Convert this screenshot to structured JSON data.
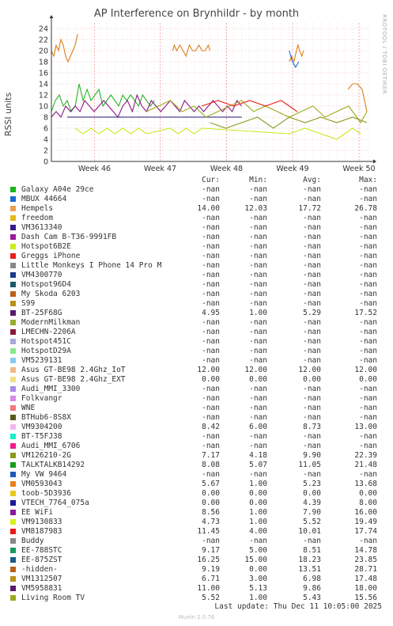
{
  "chart_data": {
    "type": "line",
    "title": "AP Interference on Brynhildr - by month",
    "ylabel": "RSSI units",
    "ylim": [
      0,
      25
    ],
    "yticks": [
      0,
      2,
      4,
      6,
      8,
      10,
      12,
      14,
      16,
      18,
      20,
      22,
      24
    ],
    "x_ticks": [
      "Week 46",
      "Week 47",
      "Week 48",
      "Week 49",
      "Week 50"
    ],
    "grid": true,
    "series": [
      {
        "name": "Hempels",
        "color": "#d97f1a",
        "values": [
          [
            0,
            20
          ],
          [
            3,
            19
          ],
          [
            6,
            21
          ],
          [
            9,
            20
          ],
          [
            12,
            22
          ],
          [
            15,
            21
          ],
          [
            18,
            19
          ],
          [
            21,
            18
          ],
          [
            24,
            19
          ],
          [
            27,
            20
          ],
          [
            30,
            21
          ],
          [
            33,
            23
          ]
        ]
      },
      {
        "name": "Hempels",
        "color": "#d97f1a",
        "values": [
          [
            153,
            20
          ],
          [
            155,
            21
          ],
          [
            158,
            20
          ],
          [
            162,
            21
          ],
          [
            166,
            20
          ],
          [
            170,
            19
          ],
          [
            174,
            21
          ],
          [
            178,
            20
          ],
          [
            182,
            20
          ],
          [
            186,
            21
          ],
          [
            190,
            20
          ],
          [
            194,
            20
          ],
          [
            198,
            21
          ],
          [
            200,
            20
          ]
        ]
      },
      {
        "name": "Hempels",
        "color": "#d97f1a",
        "values": [
          [
            300,
            18
          ],
          [
            303,
            19
          ],
          [
            306,
            18
          ],
          [
            309,
            20
          ],
          [
            311,
            21
          ],
          [
            313,
            20
          ],
          [
            316,
            19
          ],
          [
            318,
            20
          ]
        ]
      },
      {
        "name": "Galaxy A04e 29ce",
        "color": "#2bb52b",
        "values": [
          [
            0,
            9
          ],
          [
            5,
            11
          ],
          [
            10,
            12
          ],
          [
            15,
            10
          ],
          [
            20,
            11
          ],
          [
            25,
            9
          ],
          [
            30,
            10
          ],
          [
            35,
            14
          ],
          [
            40,
            11
          ],
          [
            45,
            13
          ],
          [
            50,
            11
          ],
          [
            55,
            12
          ],
          [
            60,
            13
          ],
          [
            65,
            10
          ],
          [
            70,
            11
          ],
          [
            75,
            12
          ],
          [
            80,
            11
          ],
          [
            85,
            10
          ],
          [
            90,
            12
          ],
          [
            95,
            11
          ],
          [
            100,
            12
          ],
          [
            105,
            11
          ],
          [
            110,
            10
          ],
          [
            115,
            12
          ],
          [
            120,
            11
          ],
          [
            125,
            10
          ],
          [
            130,
            11
          ]
        ]
      },
      {
        "name": "Dash Cam B-T36-9991FB",
        "color": "#8a1a8a",
        "values": [
          [
            0,
            8
          ],
          [
            6,
            9
          ],
          [
            12,
            8
          ],
          [
            18,
            10
          ],
          [
            24,
            9
          ],
          [
            30,
            10
          ],
          [
            36,
            9
          ],
          [
            42,
            11
          ],
          [
            48,
            10
          ],
          [
            54,
            9
          ],
          [
            60,
            10
          ],
          [
            66,
            11
          ],
          [
            72,
            10
          ],
          [
            78,
            9
          ],
          [
            84,
            8
          ],
          [
            90,
            10
          ],
          [
            96,
            11
          ],
          [
            102,
            9
          ],
          [
            108,
            12
          ],
          [
            114,
            10
          ],
          [
            120,
            9
          ],
          [
            126,
            11
          ],
          [
            132,
            10
          ],
          [
            138,
            9
          ],
          [
            144,
            10
          ],
          [
            150,
            11
          ],
          [
            156,
            10
          ],
          [
            162,
            9
          ],
          [
            168,
            11
          ],
          [
            174,
            10
          ],
          [
            180,
            9
          ],
          [
            186,
            10
          ],
          [
            192,
            9
          ],
          [
            198,
            10
          ],
          [
            204,
            11
          ],
          [
            210,
            10
          ],
          [
            216,
            9
          ],
          [
            222,
            10
          ],
          [
            228,
            9
          ],
          [
            234,
            11
          ],
          [
            240,
            10
          ]
        ]
      },
      {
        "name": "Hotspot6B2E",
        "color": "#c8e81a",
        "values": [
          [
            30,
            6
          ],
          [
            40,
            5
          ],
          [
            50,
            6
          ],
          [
            60,
            5
          ],
          [
            70,
            6
          ],
          [
            80,
            5
          ],
          [
            90,
            6
          ],
          [
            100,
            5
          ],
          [
            110,
            6
          ],
          [
            120,
            5
          ],
          [
            150,
            6
          ],
          [
            160,
            5
          ],
          [
            170,
            6
          ],
          [
            180,
            5
          ],
          [
            190,
            6
          ],
          [
            300,
            5
          ],
          [
            320,
            6
          ],
          [
            340,
            5
          ],
          [
            360,
            4
          ],
          [
            380,
            6
          ],
          [
            390,
            5
          ]
        ]
      },
      {
        "name": "VM4300770",
        "color": "#1a1a70",
        "values": [
          [
            20,
            8
          ],
          [
            40,
            8
          ],
          [
            60,
            8
          ],
          [
            80,
            8
          ],
          [
            100,
            8
          ],
          [
            120,
            8
          ],
          [
            140,
            8
          ],
          [
            160,
            8
          ],
          [
            180,
            8
          ],
          [
            200,
            8
          ],
          [
            220,
            8
          ],
          [
            240,
            8
          ]
        ]
      },
      {
        "name": "ModernMilkman",
        "color": "#9aaa1a",
        "values": [
          [
            120,
            9
          ],
          [
            135,
            10
          ],
          [
            150,
            11
          ],
          [
            165,
            9
          ],
          [
            180,
            10
          ],
          [
            195,
            8
          ],
          [
            210,
            9
          ],
          [
            225,
            10
          ],
          [
            240,
            11
          ],
          [
            255,
            9
          ],
          [
            270,
            10
          ],
          [
            285,
            9
          ],
          [
            300,
            8
          ],
          [
            315,
            9
          ],
          [
            330,
            10
          ],
          [
            345,
            8
          ],
          [
            360,
            9
          ],
          [
            375,
            10
          ],
          [
            390,
            7
          ],
          [
            398,
            9
          ]
        ]
      },
      {
        "name": "VM126210-2G",
        "color": "#8a9a20",
        "values": [
          [
            200,
            7
          ],
          [
            220,
            6
          ],
          [
            240,
            7
          ],
          [
            260,
            8
          ],
          [
            280,
            6
          ],
          [
            300,
            8
          ],
          [
            320,
            7
          ],
          [
            340,
            8
          ],
          [
            360,
            7
          ],
          [
            380,
            8
          ],
          [
            398,
            7
          ]
        ]
      },
      {
        "name": "Hempels",
        "color": "#d97f1a",
        "values": [
          [
            374,
            13
          ],
          [
            380,
            14
          ],
          [
            386,
            14
          ],
          [
            392,
            13
          ],
          [
            398,
            9
          ]
        ]
      },
      {
        "name": "VM8187983",
        "color": "#e8201a",
        "values": [
          [
            190,
            10
          ],
          [
            210,
            11
          ],
          [
            230,
            10
          ],
          [
            250,
            11
          ],
          [
            270,
            10
          ],
          [
            290,
            11
          ],
          [
            310,
            9
          ]
        ]
      },
      {
        "name": "MBUX 44664",
        "color": "#1a6ad0",
        "values": [
          [
            300,
            20
          ],
          [
            304,
            18
          ],
          [
            308,
            17
          ],
          [
            312,
            18
          ]
        ]
      }
    ]
  },
  "legend_header": {
    "cur": "Cur:",
    "min": "Min:",
    "avg": "Avg:",
    "max": "Max:"
  },
  "legend": [
    {
      "name": "Galaxy A04e 29ce",
      "color": "#1ab51a",
      "cur": "-nan",
      "min": "-nan",
      "avg": "-nan",
      "max": "-nan"
    },
    {
      "name": "MBUX 44664",
      "color": "#1a6ad0",
      "cur": "-nan",
      "min": "-nan",
      "avg": "-nan",
      "max": "-nan"
    },
    {
      "name": "Hempels",
      "color": "#e8a050",
      "cur": "14.00",
      "min": "12.03",
      "avg": "17.72",
      "max": "26.78"
    },
    {
      "name": "freedom",
      "color": "#e8b81a",
      "cur": "-nan",
      "min": "-nan",
      "avg": "-nan",
      "max": "-nan"
    },
    {
      "name": "VM3613340",
      "color": "#3a1a8a",
      "cur": "-nan",
      "min": "-nan",
      "avg": "-nan",
      "max": "-nan"
    },
    {
      "name": "Dash Cam B-T36-9991FB",
      "color": "#9a1a9a",
      "cur": "-nan",
      "min": "-nan",
      "avg": "-nan",
      "max": "-nan"
    },
    {
      "name": "Hotspot6B2E",
      "color": "#c8f01a",
      "cur": "-nan",
      "min": "-nan",
      "avg": "-nan",
      "max": "-nan"
    },
    {
      "name": "Greggs iPhone",
      "color": "#e8201a",
      "cur": "-nan",
      "min": "-nan",
      "avg": "-nan",
      "max": "-nan"
    },
    {
      "name": "Little Monkeys I Phone 14 Pro M",
      "color": "#888888",
      "cur": "-nan",
      "min": "-nan",
      "avg": "-nan",
      "max": "-nan"
    },
    {
      "name": "VM4300770",
      "color": "#1a3a8a",
      "cur": "-nan",
      "min": "-nan",
      "avg": "-nan",
      "max": "-nan"
    },
    {
      "name": "Hotspot96D4",
      "color": "#1a5a6a",
      "cur": "-nan",
      "min": "-nan",
      "avg": "-nan",
      "max": "-nan"
    },
    {
      "name": "My Skoda 6203",
      "color": "#b8601a",
      "cur": "-nan",
      "min": "-nan",
      "avg": "-nan",
      "max": "-nan"
    },
    {
      "name": "S99",
      "color": "#b8901a",
      "cur": "-nan",
      "min": "-nan",
      "avg": "-nan",
      "max": "-nan"
    },
    {
      "name": "BT-25F68G",
      "color": "#5a1a6a",
      "cur": "4.95",
      "min": "1.00",
      "avg": "5.29",
      "max": "17.52"
    },
    {
      "name": "ModernMilkman",
      "color": "#9aaa2a",
      "cur": "-nan",
      "min": "-nan",
      "avg": "-nan",
      "max": "-nan"
    },
    {
      "name": "LMECHN-2206A",
      "color": "#8a1a3a",
      "cur": "-nan",
      "min": "-nan",
      "avg": "-nan",
      "max": "-nan"
    },
    {
      "name": "Hotspot451C",
      "color": "#a8a8d8",
      "cur": "-nan",
      "min": "-nan",
      "avg": "-nan",
      "max": "-nan"
    },
    {
      "name": "HotspotD29A",
      "color": "#88e888",
      "cur": "-nan",
      "min": "-nan",
      "avg": "-nan",
      "max": "-nan"
    },
    {
      "name": "VM5239131",
      "color": "#88c8f0",
      "cur": "-nan",
      "min": "-nan",
      "avg": "-nan",
      "max": "-nan"
    },
    {
      "name": "Asus GT-BE98 2.4Ghz_IoT",
      "color": "#f0b888",
      "cur": "12.00",
      "min": "12.00",
      "avg": "12.00",
      "max": "12.00"
    },
    {
      "name": "Asus GT-BE98 2.4Ghz_EXT",
      "color": "#f0e088",
      "cur": "0.00",
      "min": "0.00",
      "avg": "0.00",
      "max": "0.00"
    },
    {
      "name": "Audi_MMI_3300",
      "color": "#a888e8",
      "cur": "-nan",
      "min": "-nan",
      "avg": "-nan",
      "max": "-nan"
    },
    {
      "name": "Folkvangr",
      "color": "#d888e8",
      "cur": "-nan",
      "min": "-nan",
      "avg": "-nan",
      "max": "-nan"
    },
    {
      "name": "WNE",
      "color": "#f07878",
      "cur": "-nan",
      "min": "-nan",
      "avg": "-nan",
      "max": "-nan"
    },
    {
      "name": "BTHub6-8S8X",
      "color": "#5a5a1a",
      "cur": "-nan",
      "min": "-nan",
      "avg": "-nan",
      "max": "-nan"
    },
    {
      "name": "VM9304200",
      "color": "#f0b8f0",
      "cur": "8.42",
      "min": "6.00",
      "avg": "8.73",
      "max": "13.00"
    },
    {
      "name": "BT-T5FJ38",
      "color": "#1af0c8",
      "cur": "-nan",
      "min": "-nan",
      "avg": "-nan",
      "max": "-nan"
    },
    {
      "name": "Audi_MMI_6706",
      "color": "#f01a8a",
      "cur": "-nan",
      "min": "-nan",
      "avg": "-nan",
      "max": "-nan"
    },
    {
      "name": "VM126210-2G",
      "color": "#8a9a1a",
      "cur": "7.17",
      "min": "4.18",
      "avg": "9.90",
      "max": "22.39"
    },
    {
      "name": "TALKTALKB14292",
      "color": "#1a9a1a",
      "cur": "8.08",
      "min": "5.07",
      "avg": "11.05",
      "max": "21.48"
    },
    {
      "name": "My VW 9464",
      "color": "#1a5ab8",
      "cur": "-nan",
      "min": "-nan",
      "avg": "-nan",
      "max": "-nan"
    },
    {
      "name": "VM0593043",
      "color": "#e8801a",
      "cur": "5.67",
      "min": "1.00",
      "avg": "5.23",
      "max": "13.68"
    },
    {
      "name": "toob-5D3936",
      "color": "#e8c81a",
      "cur": "0.00",
      "min": "0.00",
      "avg": "0.00",
      "max": "0.00"
    },
    {
      "name": "VTECH_7764_075a",
      "color": "#1a1a9a",
      "cur": "0.00",
      "min": "0.00",
      "avg": "4.39",
      "max": "8.00"
    },
    {
      "name": "EE WiFi",
      "color": "#8a1a9a",
      "cur": "8.56",
      "min": "1.00",
      "avg": "7.90",
      "max": "16.00"
    },
    {
      "name": "VM9130833",
      "color": "#d8f01a",
      "cur": "4.73",
      "min": "1.00",
      "avg": "5.52",
      "max": "19.49"
    },
    {
      "name": "VM8187983",
      "color": "#e81a1a",
      "cur": "11.45",
      "min": "4.00",
      "avg": "10.01",
      "max": "17.74"
    },
    {
      "name": "Buddy",
      "color": "#888888",
      "cur": "-nan",
      "min": "-nan",
      "avg": "-nan",
      "max": "-nan"
    },
    {
      "name": "EE-788STC",
      "color": "#1a9a5a",
      "cur": "9.17",
      "min": "5.00",
      "avg": "8.51",
      "max": "14.78"
    },
    {
      "name": "EE-875ZST",
      "color": "#1a5a8a",
      "cur": "16.25",
      "min": "15.00",
      "avg": "18.23",
      "max": "23.85"
    },
    {
      "name": "-hidden-",
      "color": "#b8601a",
      "cur": "9.19",
      "min": "0.00",
      "avg": "13.51",
      "max": "28.71"
    },
    {
      "name": "VM1312507",
      "color": "#b8901a",
      "cur": "6.71",
      "min": "3.00",
      "avg": "6.98",
      "max": "17.48"
    },
    {
      "name": "VM5958831",
      "color": "#5a1a6a",
      "cur": "11.00",
      "min": "5.13",
      "avg": "9.86",
      "max": "18.00"
    },
    {
      "name": "Living Room TV",
      "color": "#9aaa1a",
      "cur": "5.52",
      "min": "1.00",
      "avg": "5.43",
      "max": "15.56"
    }
  ],
  "last_update": "Last update: Thu Dec 11 10:05:00 2025",
  "watermark": "RRDTOOL / TOBI OETIKER",
  "footer": "Munin 2.0.76"
}
